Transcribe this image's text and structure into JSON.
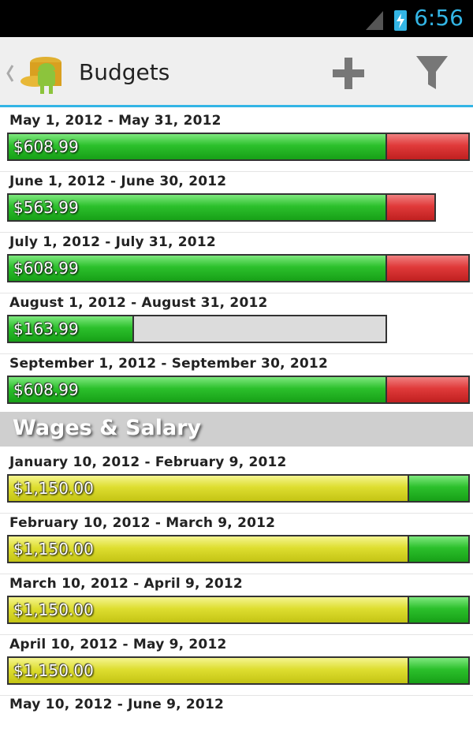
{
  "status_bar": {
    "time": "6:56"
  },
  "action_bar": {
    "title": "Budgets"
  },
  "groups": [
    {
      "items": [
        {
          "period": "May 1, 2012 - May 31, 2012",
          "amount": "$608.99"
        },
        {
          "period": "June 1, 2012 - June 30, 2012",
          "amount": "$563.99"
        },
        {
          "period": "July 1, 2012 - July 31, 2012",
          "amount": "$608.99"
        },
        {
          "period": "August 1, 2012 - August 31, 2012",
          "amount": "$163.99"
        },
        {
          "period": "September 1, 2012 - September 30, 2012",
          "amount": "$608.99"
        }
      ]
    },
    {
      "header": "Wages & Salary",
      "items": [
        {
          "period": "January 10, 2012 - February 9, 2012",
          "amount": "$1,150.00"
        },
        {
          "period": "February 10, 2012 - March 9, 2012",
          "amount": "$1,150.00"
        },
        {
          "period": "March 10, 2012 - April 9, 2012",
          "amount": "$1,150.00"
        },
        {
          "period": "April 10, 2012 - May 9, 2012",
          "amount": "$1,150.00"
        },
        {
          "period": "May 10, 2012 - June 9, 2012"
        }
      ]
    }
  ]
}
